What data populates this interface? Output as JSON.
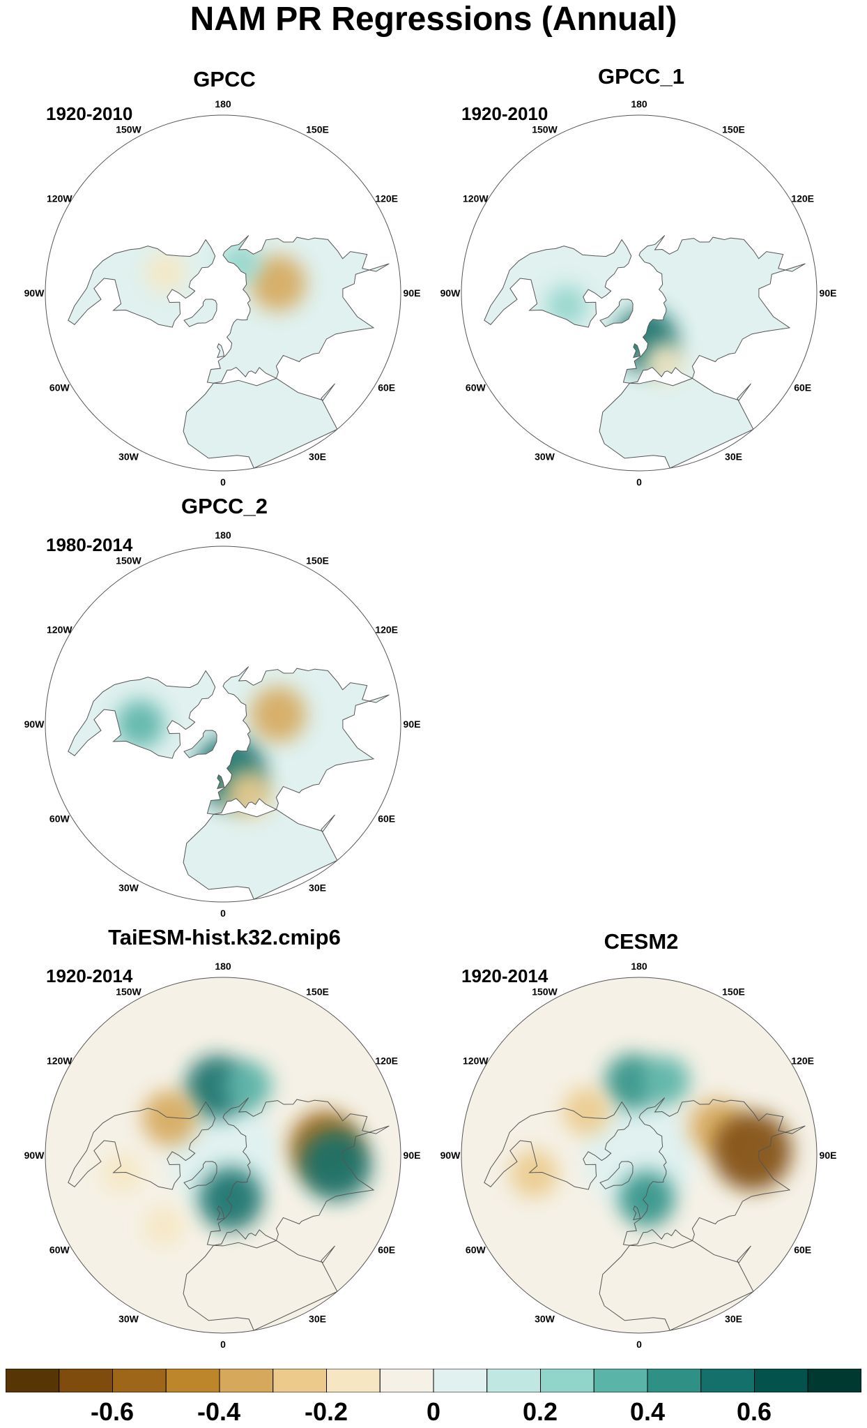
{
  "title": "NAM PR Regressions (Annual)",
  "longitude_labels": [
    "180",
    "150E",
    "120E",
    "90E",
    "60E",
    "30E",
    "0",
    "30W",
    "60W",
    "90W",
    "120W",
    "150W"
  ],
  "colors": {
    "levels": [
      "#573505",
      "#7f4c0d",
      "#9e6619",
      "#bd862a",
      "#d6a85b",
      "#ebca8c",
      "#f6e7c2",
      "#f5f1e6",
      "#e0f1ef",
      "#c0e7e1",
      "#91d4ca",
      "#5ab4a8",
      "#2f9186",
      "#13706a",
      "#03524c",
      "#00392f"
    ],
    "ocean": "#ffffff",
    "neutral_pos": "#e0f1ef",
    "neutral_neg": "#f5f1e6",
    "coast": "#555555"
  },
  "chart_data": {
    "type": "heatmap",
    "projection": "north-polar-stereographic",
    "colorbar": {
      "ticks": [
        "-0.6",
        "-0.4",
        "-0.2",
        "0",
        "0.2",
        "0.4",
        "0.6"
      ],
      "bins": 16
    },
    "panels": [
      {
        "title": "GPCC",
        "period": "1920-2010",
        "coverage": "land-only",
        "features": [
          {
            "lon": 100,
            "lat": 55,
            "value": -0.4
          },
          {
            "lon": 150,
            "lat": 68,
            "value": 0.2
          },
          {
            "lon": -110,
            "lat": 52,
            "value": -0.2
          }
        ]
      },
      {
        "title": "GPCC_1",
        "period": "1920-2010",
        "coverage": "land-only",
        "features": [
          {
            "lon": 8,
            "lat": 60,
            "value": 0.5
          },
          {
            "lon": 20,
            "lat": 45,
            "value": -0.2
          },
          {
            "lon": -80,
            "lat": 45,
            "value": 0.2
          }
        ]
      },
      {
        "title": "GPCC_2",
        "period": "1980-2014",
        "coverage": "land-only",
        "features": [
          {
            "lon": 8,
            "lat": 60,
            "value": 0.6
          },
          {
            "lon": 20,
            "lat": 45,
            "value": -0.3
          },
          {
            "lon": -90,
            "lat": 40,
            "value": 0.3
          },
          {
            "lon": 100,
            "lat": 55,
            "value": -0.4
          }
        ]
      },
      {
        "title": "TaiESM-hist.k32.cmip6",
        "period": "1920-2014",
        "coverage": "global",
        "features": [
          {
            "lon": -175,
            "lat": 48,
            "value": 0.5
          },
          {
            "lon": 160,
            "lat": 45,
            "value": 0.3
          },
          {
            "lon": -125,
            "lat": 50,
            "value": -0.4
          },
          {
            "lon": -80,
            "lat": 30,
            "value": -0.2
          },
          {
            "lon": 95,
            "lat": 30,
            "value": -0.6
          },
          {
            "lon": 85,
            "lat": 25,
            "value": 0.6
          },
          {
            "lon": 10,
            "lat": 62,
            "value": 0.5
          },
          {
            "lon": -40,
            "lat": 35,
            "value": -0.2
          }
        ]
      },
      {
        "title": "CESM2",
        "period": "1920-2014",
        "coverage": "global",
        "features": [
          {
            "lon": -175,
            "lat": 45,
            "value": 0.4
          },
          {
            "lon": 160,
            "lat": 42,
            "value": 0.3
          },
          {
            "lon": -130,
            "lat": 48,
            "value": -0.3
          },
          {
            "lon": -80,
            "lat": 28,
            "value": -0.3
          },
          {
            "lon": 110,
            "lat": 40,
            "value": -0.4
          },
          {
            "lon": 92,
            "lat": 25,
            "value": -0.7
          },
          {
            "lon": 10,
            "lat": 62,
            "value": 0.4
          }
        ]
      }
    ]
  }
}
